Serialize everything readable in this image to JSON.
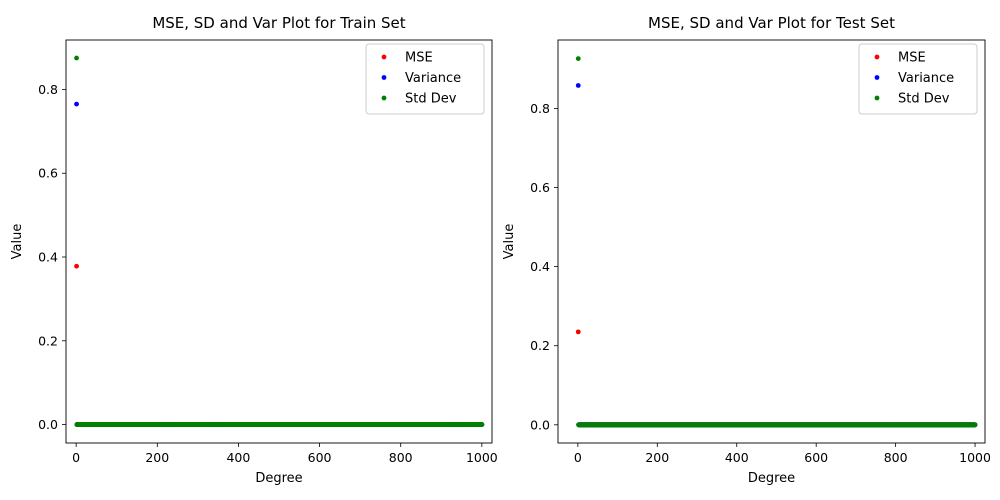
{
  "colors": {
    "mse": "#ff0000",
    "variance": "#0000ff",
    "std_dev": "#008000"
  },
  "chart_data": [
    {
      "type": "scatter",
      "title": "MSE, SD and Var Plot for Train Set",
      "xlabel": "Degree",
      "ylabel": "Value",
      "xlim": [
        -25,
        1025
      ],
      "ylim": [
        -0.044,
        0.918
      ],
      "xticks": [
        0,
        200,
        400,
        600,
        800,
        1000
      ],
      "xtick_labels": [
        "0",
        "200",
        "400",
        "600",
        "800",
        "1000"
      ],
      "yticks": [
        0.0,
        0.2,
        0.4,
        0.6,
        0.8
      ],
      "ytick_labels": [
        "0.0",
        "0.2",
        "0.4",
        "0.6",
        "0.8"
      ],
      "grid": false,
      "legend_position": "top-right",
      "x_range": [
        1,
        1000
      ],
      "baseline_value": 0.0,
      "series": [
        {
          "name": "MSE",
          "color": "#ff0000",
          "first_point": {
            "x": 1,
            "y": 0.378
          },
          "rest_value": 0.0
        },
        {
          "name": "Variance",
          "color": "#0000ff",
          "first_point": {
            "x": 1,
            "y": 0.765
          },
          "rest_value": 0.0
        },
        {
          "name": "Std Dev",
          "color": "#008000",
          "first_point": {
            "x": 1,
            "y": 0.875
          },
          "rest_value": 0.0
        }
      ]
    },
    {
      "type": "scatter",
      "title": "MSE, SD and Var Plot for Test Set",
      "xlabel": "Degree",
      "ylabel": "Value",
      "xlim": [
        -50,
        1025
      ],
      "ylim": [
        -0.046,
        0.973
      ],
      "xticks": [
        0,
        200,
        400,
        600,
        800,
        1000
      ],
      "xtick_labels": [
        "0",
        "200",
        "400",
        "600",
        "800",
        "1000"
      ],
      "yticks": [
        0.0,
        0.2,
        0.4,
        0.6,
        0.8
      ],
      "ytick_labels": [
        "0.0",
        "0.2",
        "0.4",
        "0.6",
        "0.8"
      ],
      "grid": false,
      "legend_position": "top-right",
      "x_range": [
        1,
        1000
      ],
      "baseline_value": 0.0,
      "series": [
        {
          "name": "MSE",
          "color": "#ff0000",
          "first_point": {
            "x": 1,
            "y": 0.235
          },
          "rest_value": 0.0
        },
        {
          "name": "Variance",
          "color": "#0000ff",
          "first_point": {
            "x": 1,
            "y": 0.858
          },
          "rest_value": 0.0
        },
        {
          "name": "Std Dev",
          "color": "#008000",
          "first_point": {
            "x": 1,
            "y": 0.926
          },
          "rest_value": 0.0
        }
      ]
    }
  ]
}
